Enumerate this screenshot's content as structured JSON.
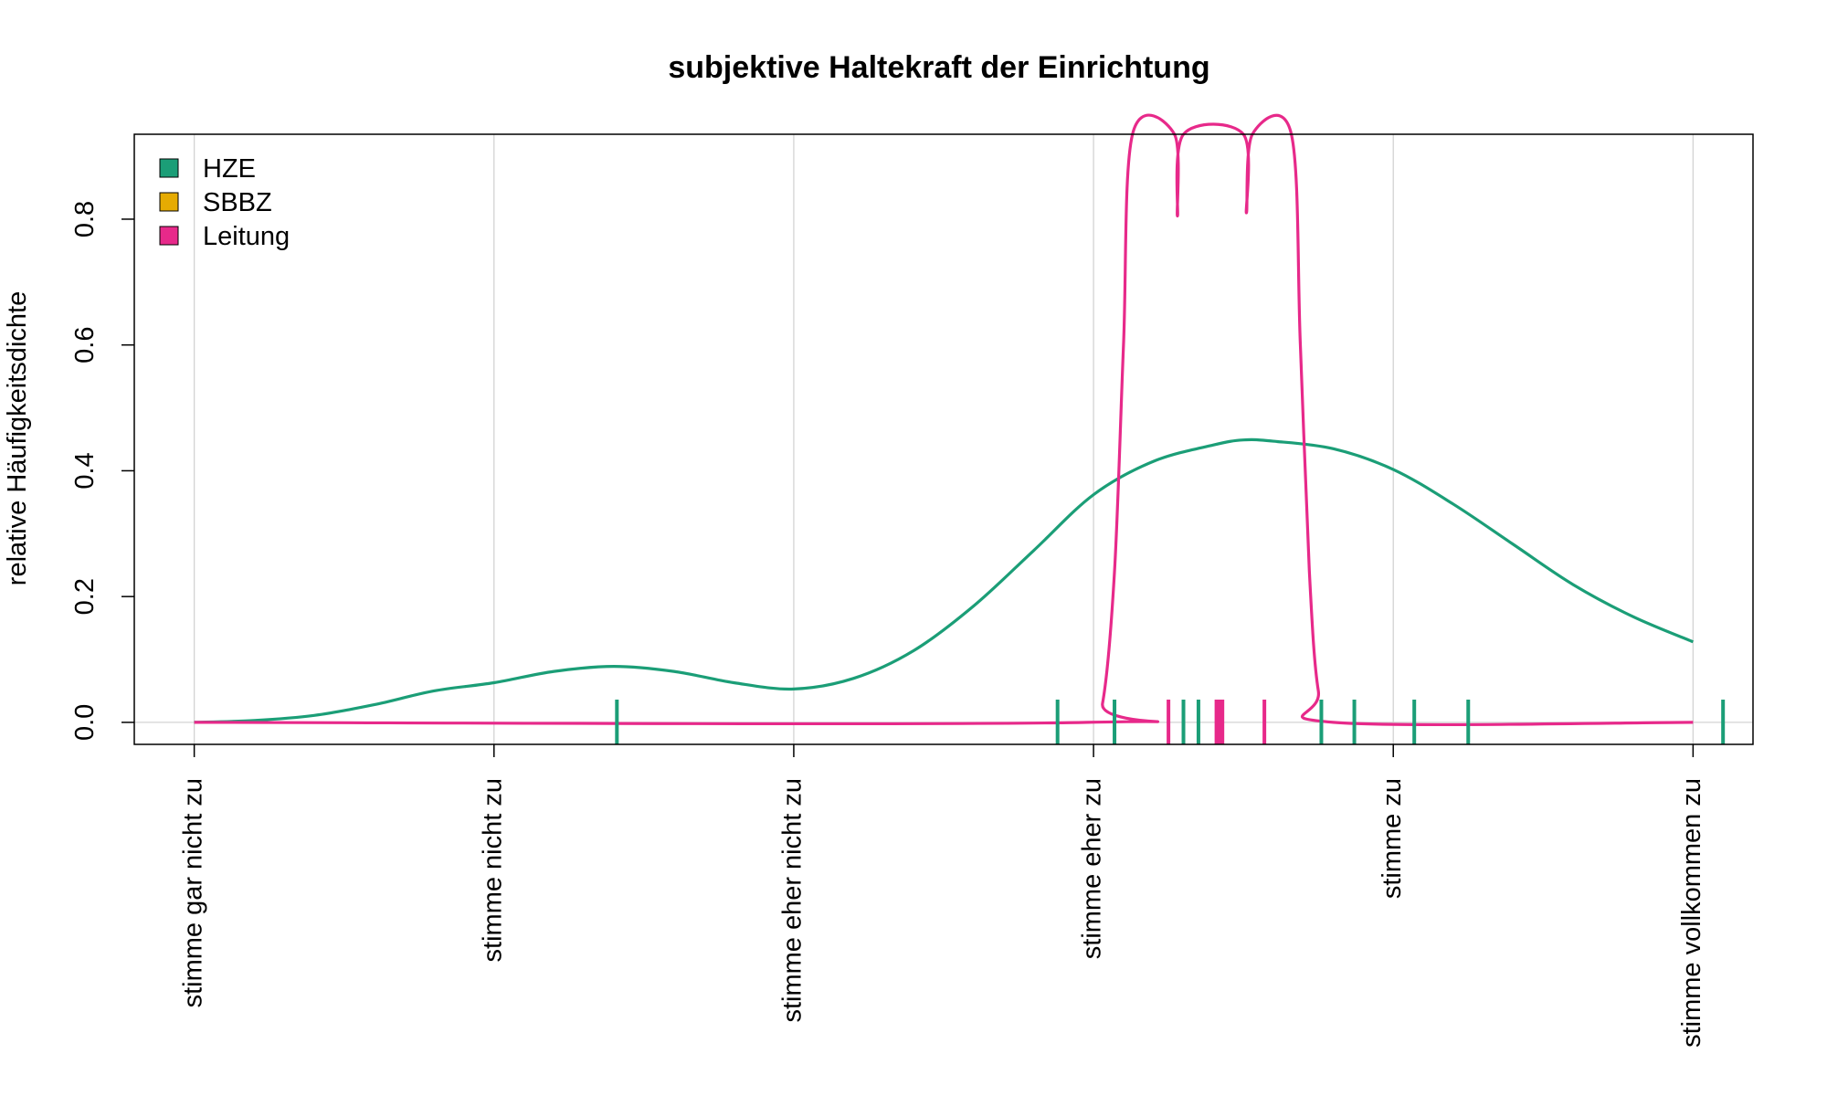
{
  "chart_data": {
    "type": "line",
    "title": "subjektive Haltekraft der Einrichtung",
    "xlabel": "",
    "ylabel": "relative Häufigkeitsdichte",
    "xlim": [
      0.8,
      6.2
    ],
    "ylim": [
      -0.035,
      0.935
    ],
    "x_ticks": [
      1,
      2,
      3,
      4,
      5,
      6
    ],
    "x_tick_labels": [
      "stimme gar nicht zu",
      "stimme nicht zu",
      "stimme eher nicht zu",
      "stimme eher zu",
      "stimme zu",
      "stimme vollkommen zu"
    ],
    "y_ticks": [
      0.0,
      0.2,
      0.4,
      0.6,
      0.8
    ],
    "y_tick_labels": [
      "0.0",
      "0.2",
      "0.4",
      "0.6",
      "0.8"
    ],
    "grid": true,
    "legend_position": "top-left",
    "legend": [
      {
        "name": "HZE",
        "color": "#1b9e77"
      },
      {
        "name": "SBBZ",
        "color": "#e6ab02"
      },
      {
        "name": "Leitung",
        "color": "#e7298a"
      }
    ],
    "series": [
      {
        "name": "HZE",
        "color": "#1b9e77",
        "points": [
          [
            1.0,
            0.0
          ],
          [
            1.2,
            0.003
          ],
          [
            1.4,
            0.011
          ],
          [
            1.6,
            0.028
          ],
          [
            1.8,
            0.05
          ],
          [
            2.0,
            0.063
          ],
          [
            2.2,
            0.081
          ],
          [
            2.4,
            0.089
          ],
          [
            2.6,
            0.081
          ],
          [
            2.8,
            0.063
          ],
          [
            3.0,
            0.053
          ],
          [
            3.2,
            0.07
          ],
          [
            3.4,
            0.114
          ],
          [
            3.6,
            0.185
          ],
          [
            3.8,
            0.273
          ],
          [
            4.0,
            0.362
          ],
          [
            4.2,
            0.415
          ],
          [
            4.4,
            0.441
          ],
          [
            4.5,
            0.449
          ],
          [
            4.6,
            0.447
          ],
          [
            4.8,
            0.435
          ],
          [
            5.0,
            0.402
          ],
          [
            5.2,
            0.347
          ],
          [
            5.4,
            0.283
          ],
          [
            5.6,
            0.219
          ],
          [
            5.8,
            0.168
          ],
          [
            6.0,
            0.128
          ]
        ]
      },
      {
        "name": "Leitung",
        "color": "#e7298a",
        "points": [
          [
            1.0,
            0.0
          ],
          [
            3.98,
            0.0
          ],
          [
            4.03,
            0.03
          ],
          [
            4.07,
            0.24
          ],
          [
            4.1,
            0.6
          ],
          [
            4.13,
            0.935
          ],
          [
            4.27,
            0.935
          ],
          [
            4.28,
            0.805
          ],
          [
            4.3,
            0.935
          ],
          [
            4.5,
            0.935
          ],
          [
            4.51,
            0.81
          ],
          [
            4.53,
            0.935
          ],
          [
            4.66,
            0.935
          ],
          [
            4.69,
            0.6
          ],
          [
            4.72,
            0.24
          ],
          [
            4.75,
            0.05
          ],
          [
            4.8,
            0.0
          ],
          [
            6.0,
            0.0
          ]
        ]
      }
    ],
    "rug": [
      {
        "series": "HZE",
        "color": "#1b9e77",
        "x": [
          2.41,
          3.88,
          4.07,
          4.3,
          4.35,
          4.76,
          4.87,
          5.07,
          5.25,
          6.1
        ]
      },
      {
        "series": "Leitung",
        "color": "#e7298a",
        "x": [
          4.25,
          4.41,
          4.42,
          4.43,
          4.57
        ]
      }
    ]
  }
}
